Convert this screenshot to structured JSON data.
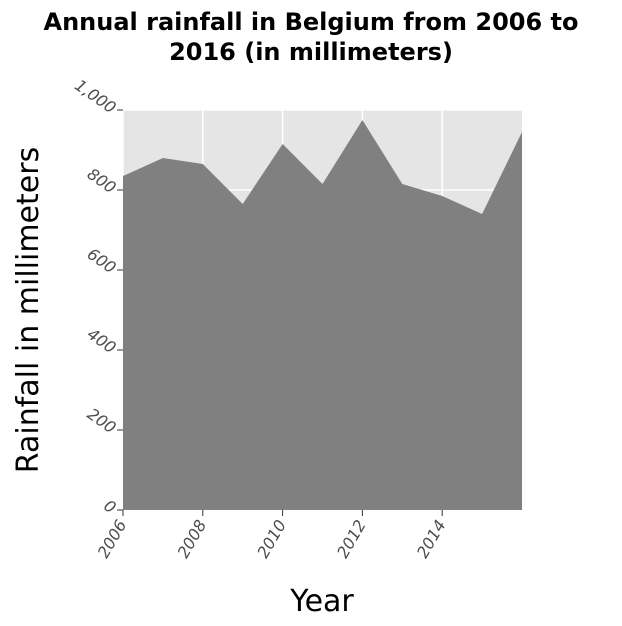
{
  "chart_data": {
    "type": "area",
    "title_lines": [
      "Annual rainfall in Belgium from 2006 to",
      "2016 (in millimeters)"
    ],
    "xlabel": "Year",
    "ylabel": "Rainfall in millimeters",
    "x": [
      2006,
      2007,
      2008,
      2009,
      2010,
      2011,
      2012,
      2013,
      2014,
      2015,
      2016
    ],
    "values": [
      835,
      880,
      865,
      765,
      915,
      815,
      975,
      815,
      785,
      740,
      945
    ],
    "xlim": [
      2006,
      2016
    ],
    "ylim": [
      0,
      1000
    ],
    "x_ticks": [
      2006,
      2008,
      2010,
      2012,
      2014
    ],
    "x_tick_labels": [
      "2006",
      "2008",
      "2010",
      "2012",
      "2014"
    ],
    "y_ticks": [
      0,
      200,
      400,
      600,
      800,
      1000
    ],
    "y_tick_labels": [
      "0",
      "200",
      "400",
      "600",
      "800",
      "1,000"
    ],
    "grid": true,
    "colors": {
      "area": "#808080",
      "plot_background": "#e5e5e5",
      "grid": "#ffffff"
    }
  }
}
